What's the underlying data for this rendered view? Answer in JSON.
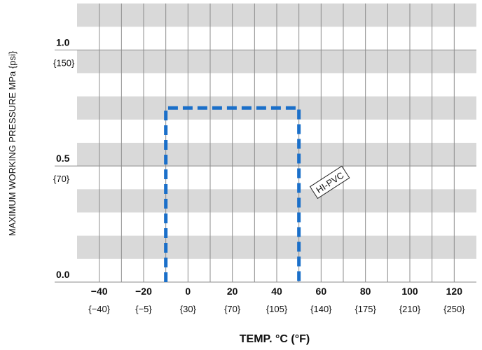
{
  "chart_data": {
    "type": "line",
    "xlabel": "TEMP. °C (°F)",
    "ylabel": "MAXIMUM WORKING PRESSURE   MPa {psi}",
    "xlim": [
      -50,
      130
    ],
    "ylim": [
      0,
      1.2
    ],
    "x_ticks": [
      {
        "value": -40,
        "label": "−40",
        "sub": "{−40}"
      },
      {
        "value": -20,
        "label": "−20",
        "sub": "{−5}"
      },
      {
        "value": 0,
        "label": "0",
        "sub": "{30}"
      },
      {
        "value": 20,
        "label": "20",
        "sub": "{70}"
      },
      {
        "value": 40,
        "label": "40",
        "sub": "{105}"
      },
      {
        "value": 60,
        "label": "60",
        "sub": "{140}"
      },
      {
        "value": 80,
        "label": "80",
        "sub": "{175}"
      },
      {
        "value": 100,
        "label": "100",
        "sub": "{210}"
      },
      {
        "value": 120,
        "label": "120",
        "sub": "{250}"
      }
    ],
    "y_ticks": [
      {
        "value": 0.0,
        "label": "0.0",
        "sub": ""
      },
      {
        "value": 0.5,
        "label": "0.5",
        "sub": "{70}"
      },
      {
        "value": 1.0,
        "label": "1.0",
        "sub": "{150}"
      }
    ],
    "series": [
      {
        "name": "HI-PVC",
        "color": "#1a6fc9",
        "style": "dashed",
        "x": [
          -10,
          -10,
          50,
          50
        ],
        "y": [
          0,
          0.75,
          0.75,
          0
        ]
      }
    ],
    "grid": true,
    "band_color": "#d9d9d9"
  }
}
